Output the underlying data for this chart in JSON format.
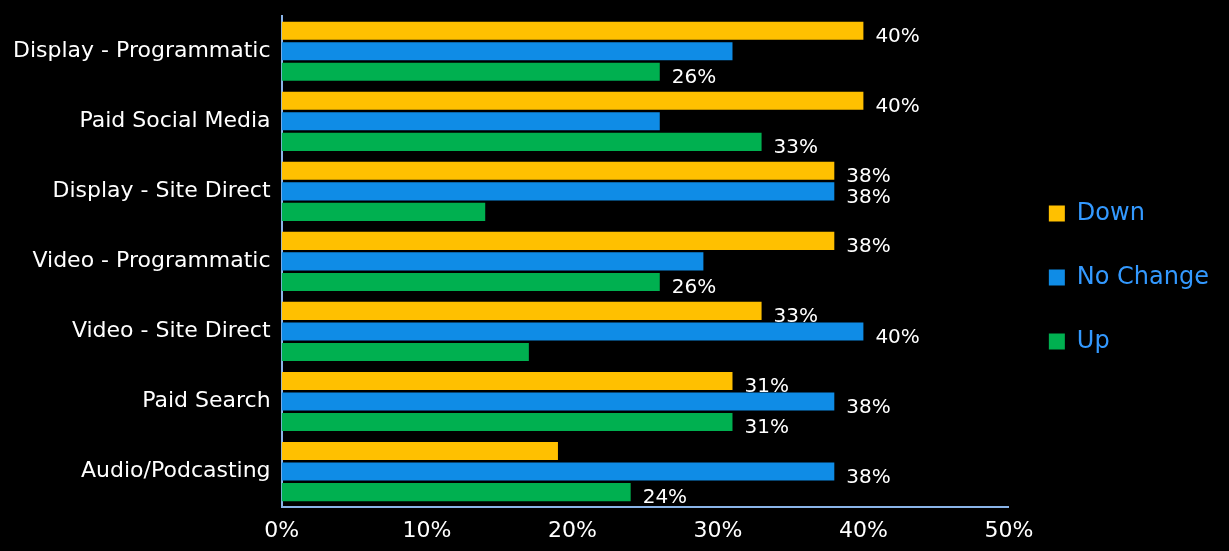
{
  "chart_data": {
    "type": "bar",
    "orientation": "horizontal",
    "categories": [
      "Display - Programmatic",
      "Paid Social Media",
      "Display - Site Direct",
      "Video - Programmatic",
      "Video - Site Direct",
      "Paid Search",
      "Audio/Podcasting"
    ],
    "series": [
      {
        "name": "Down",
        "color": "#ffc000",
        "values": [
          40,
          40,
          38,
          38,
          33,
          31,
          19
        ],
        "value_labels": [
          "40%",
          "40%",
          "38%",
          "38%",
          "33%",
          "31%",
          null
        ]
      },
      {
        "name": "No Change",
        "color": "#0f8ce6",
        "values": [
          31,
          26,
          38,
          29,
          40,
          38,
          38
        ],
        "value_labels": [
          null,
          null,
          "38%",
          null,
          "40%",
          "38%",
          "38%"
        ]
      },
      {
        "name": "Up",
        "color": "#00b050",
        "values": [
          26,
          33,
          14,
          26,
          17,
          31,
          24
        ],
        "value_labels": [
          "26%",
          "33%",
          null,
          "26%",
          null,
          "31%",
          "24%"
        ]
      }
    ],
    "xlim": [
      0,
      50
    ],
    "xticks": [
      {
        "value": 0,
        "label": "0%"
      },
      {
        "value": 10,
        "label": "10%"
      },
      {
        "value": 20,
        "label": "20%"
      },
      {
        "value": 30,
        "label": "30%"
      },
      {
        "value": 40,
        "label": "40%"
      },
      {
        "value": 50,
        "label": "50%"
      }
    ],
    "legend": "right",
    "grid": false
  }
}
